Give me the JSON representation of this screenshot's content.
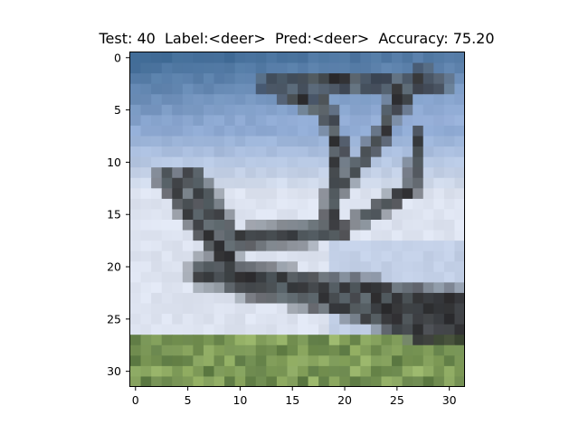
{
  "figure": {
    "title": "Test: 40  Label:<deer>  Pred:<deer>  Accuracy: 75.20"
  },
  "axes": {
    "x_tick_labels": [
      "0",
      "5",
      "10",
      "15",
      "20",
      "25",
      "30"
    ],
    "y_tick_labels": [
      "0",
      "5",
      "10",
      "15",
      "20",
      "25",
      "30"
    ]
  },
  "image": {
    "description_colors": {
      "sky_top": "#3f6a95",
      "sky_mid": "#8faad3",
      "sky_light": "#dde3f0",
      "tree_dark": "#2b2a2c",
      "tree_mid": "#5f6a70",
      "grass": "#9ab66a",
      "grass_dark": "#4d6a3a"
    }
  }
}
